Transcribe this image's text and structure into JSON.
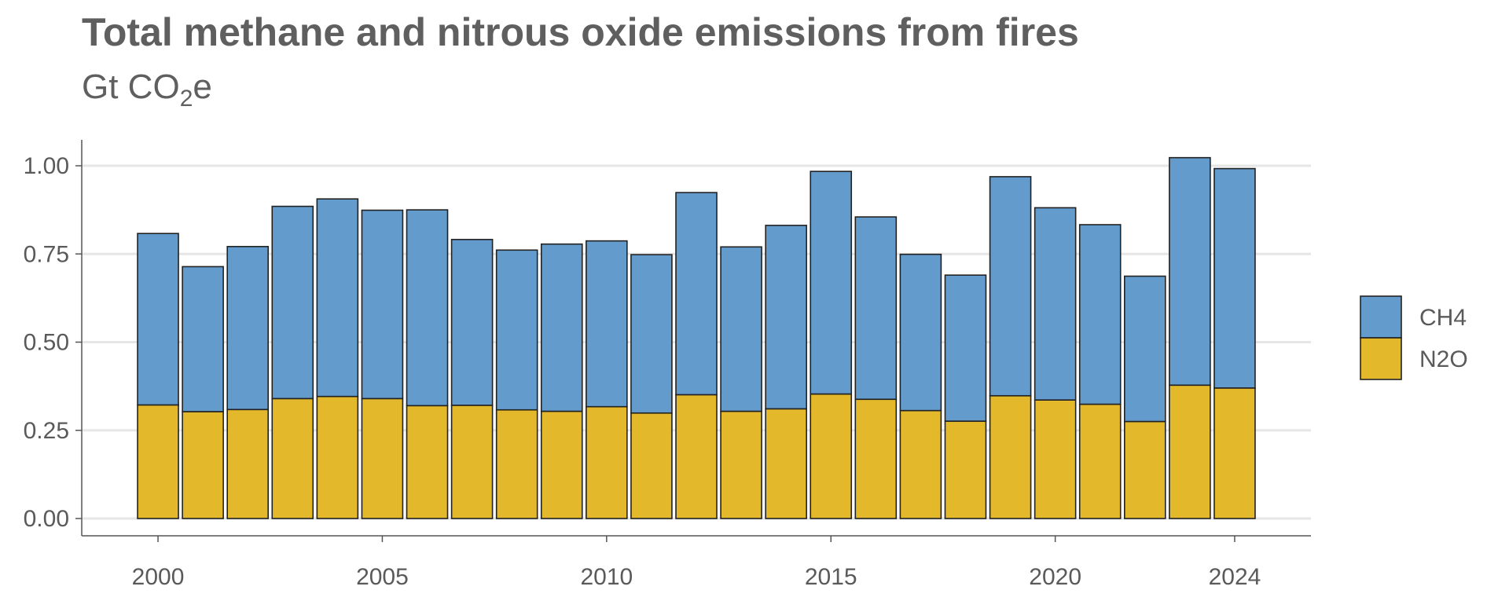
{
  "chart_data": {
    "type": "bar",
    "stacked": true,
    "title": "Total methane and nitrous oxide emissions from fires",
    "subtitle": {
      "prefix": "Gt CO",
      "subscript": "2",
      "suffix": "e"
    },
    "xlabel": "",
    "ylabel": "",
    "ylim": [
      0,
      1.05
    ],
    "xlim": [
      1998.3,
      2025.7
    ],
    "y_ticks": [
      0.0,
      0.25,
      0.5,
      0.75,
      1.0
    ],
    "y_tick_labels": [
      "0.00",
      "0.25",
      "0.50",
      "0.75",
      "1.00"
    ],
    "x_ticks": [
      2000,
      2005,
      2010,
      2015,
      2020,
      2024
    ],
    "x_tick_labels": [
      "2000",
      "2005",
      "2010",
      "2015",
      "2020",
      "2024"
    ],
    "grid": "horizontal-major",
    "legend_position": "right",
    "categories": [
      2000,
      2001,
      2002,
      2003,
      2004,
      2005,
      2006,
      2007,
      2008,
      2009,
      2010,
      2011,
      2012,
      2013,
      2014,
      2015,
      2016,
      2017,
      2018,
      2019,
      2020,
      2021,
      2022,
      2023,
      2024
    ],
    "series": [
      {
        "name": "N2O",
        "color": "#E3B82B",
        "values": [
          0.322,
          0.303,
          0.309,
          0.34,
          0.346,
          0.34,
          0.32,
          0.321,
          0.308,
          0.304,
          0.317,
          0.299,
          0.351,
          0.304,
          0.311,
          0.353,
          0.338,
          0.306,
          0.276,
          0.348,
          0.336,
          0.324,
          0.275,
          0.378,
          0.37
        ]
      },
      {
        "name": "CH4",
        "color": "#639BCC",
        "values": [
          0.486,
          0.411,
          0.462,
          0.545,
          0.56,
          0.534,
          0.555,
          0.47,
          0.453,
          0.474,
          0.47,
          0.449,
          0.573,
          0.466,
          0.52,
          0.631,
          0.517,
          0.443,
          0.414,
          0.621,
          0.545,
          0.509,
          0.412,
          0.645,
          0.622
        ]
      }
    ],
    "legend_order": [
      "CH4",
      "N2O"
    ]
  }
}
